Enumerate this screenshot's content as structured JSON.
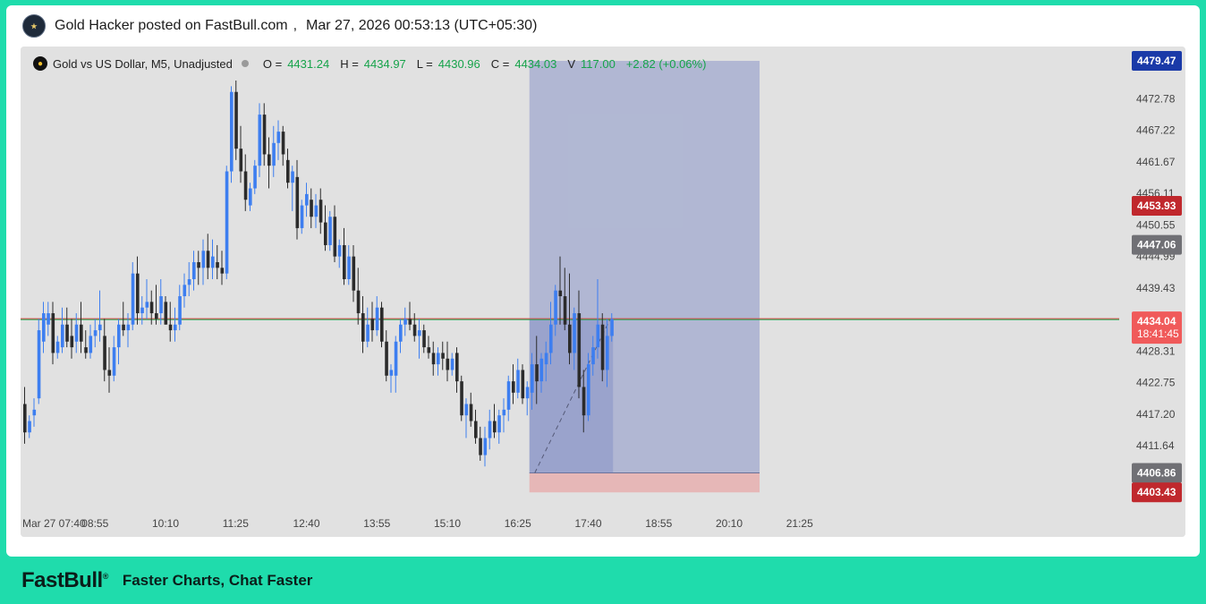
{
  "post": {
    "author": "Gold Hacker posted on FastBull.com",
    "separator": ",",
    "timestamp": "Mar 27, 2026 00:53:13 (UTC+05:30)"
  },
  "footer": {
    "brand": "FastBull",
    "tagline": "Faster Charts, Chat Faster"
  },
  "colors": {
    "up": "#3d7ef0",
    "down": "#2b2b2b",
    "bg": "#e1e1e1",
    "position_zone": "#6f7fc0",
    "stop_zone": "#e8a0a0",
    "pos_green": "#16a34a"
  },
  "chart_data": {
    "type": "candlestick",
    "symbol": "Gold vs US Dollar, M5, Unadjusted",
    "ohlc": {
      "open_label": "O =",
      "open": "4431.24",
      "high_label": "H =",
      "high": "4434.97",
      "low_label": "L =",
      "low": "4430.96",
      "close_label": "C =",
      "close": "4434.03",
      "volume_label": "V",
      "volume": "117.00",
      "change": "+2.82 (+0.06%)"
    },
    "y_range": [
      4400,
      4482
    ],
    "y_ticks": [
      "4472.78",
      "4467.22",
      "4461.67",
      "4456.11",
      "4450.55",
      "4444.99",
      "4439.43",
      "4428.31",
      "4422.75",
      "4417.20",
      "4411.64"
    ],
    "x_ticks": [
      "Mar 27 07:40",
      "08:55",
      "10:10",
      "11:25",
      "12:40",
      "13:55",
      "15:10",
      "16:25",
      "17:40",
      "18:55",
      "20:10",
      "21:25"
    ],
    "price_labels": [
      {
        "value": "4479.47",
        "y": 4479.47,
        "color": "#1a3aa8"
      },
      {
        "value": "4453.93",
        "y": 4453.93,
        "color": "#c0282d"
      },
      {
        "value": "4447.06",
        "y": 4447.06,
        "color": "#707075"
      },
      {
        "value": "4406.86",
        "y": 4406.86,
        "color": "#707075"
      },
      {
        "value": "4403.43",
        "y": 4403.43,
        "color": "#c0282d"
      }
    ],
    "current_price": {
      "value": "4434.04",
      "countdown": "18:41:45",
      "y": 4434.04,
      "color": "#f05a5a"
    },
    "position_tool": {
      "entry": 4406.86,
      "target": 4479.47,
      "stop": 4403.43,
      "start_time": "16:25",
      "end_time": "20:10"
    },
    "candles": [
      [
        4419,
        4422,
        4412,
        4414
      ],
      [
        4414,
        4417,
        4413,
        4416
      ],
      [
        4417,
        4420,
        4415,
        4418
      ],
      [
        4420,
        4434,
        4419,
        4432
      ],
      [
        4430,
        4437,
        4428,
        4435
      ],
      [
        4433,
        4437,
        4431,
        4435
      ],
      [
        4435,
        4437,
        4426,
        4428
      ],
      [
        4428,
        4431,
        4427,
        4430
      ],
      [
        4429,
        4436,
        4428,
        4433
      ],
      [
        4433,
        4436,
        4429,
        4430
      ],
      [
        4431,
        4434,
        4427,
        4429
      ],
      [
        4430,
        4435,
        4428,
        4433
      ],
      [
        4433,
        4437,
        4428,
        4430
      ],
      [
        4429,
        4432,
        4427,
        4428
      ],
      [
        4428,
        4433,
        4427,
        4431
      ],
      [
        4431,
        4434,
        4429,
        4432
      ],
      [
        4432,
        4439,
        4430,
        4433
      ],
      [
        4431,
        4434,
        4423,
        4425
      ],
      [
        4425,
        4429,
        4421,
        4424
      ],
      [
        4424,
        4431,
        4423,
        4429
      ],
      [
        4429,
        4434,
        4426,
        4433
      ],
      [
        4433,
        4437,
        4431,
        4432
      ],
      [
        4432,
        4435,
        4429,
        4433
      ],
      [
        4433,
        4444,
        4432,
        4442
      ],
      [
        4442,
        4445,
        4433,
        4435
      ],
      [
        4435,
        4438,
        4433,
        4436
      ],
      [
        4436,
        4441,
        4434,
        4437
      ],
      [
        4437,
        4439,
        4433,
        4435
      ],
      [
        4435,
        4440,
        4433,
        4434
      ],
      [
        4435,
        4441,
        4433,
        4438
      ],
      [
        4437,
        4438,
        4433,
        4433
      ],
      [
        4433,
        4437,
        4430,
        4432
      ],
      [
        4432,
        4436,
        4430,
        4433
      ],
      [
        4433,
        4440,
        4432,
        4438
      ],
      [
        4438,
        4442,
        4436,
        4440
      ],
      [
        4440,
        4444,
        4438,
        4441
      ],
      [
        4441,
        4446,
        4439,
        4444
      ],
      [
        4444,
        4446,
        4440,
        4443
      ],
      [
        4443,
        4448,
        4440,
        4446
      ],
      [
        4446,
        4449,
        4441,
        4443
      ],
      [
        4443,
        4448,
        4441,
        4445
      ],
      [
        4444,
        4447,
        4441,
        4443
      ],
      [
        4443,
        4446,
        4440,
        4442
      ],
      [
        4442,
        4461,
        4441,
        4460
      ],
      [
        4460,
        4475,
        4458,
        4474
      ],
      [
        4474,
        4476,
        4462,
        4464
      ],
      [
        4464,
        4468,
        4458,
        4460
      ],
      [
        4460,
        4463,
        4453,
        4455
      ],
      [
        4454,
        4458,
        4453,
        4457
      ],
      [
        4457,
        4462,
        4456,
        4461
      ],
      [
        4461,
        4472,
        4459,
        4470
      ],
      [
        4470,
        4472,
        4461,
        4463
      ],
      [
        4463,
        4466,
        4457,
        4461
      ],
      [
        4461,
        4468,
        4459,
        4465
      ],
      [
        4465,
        4469,
        4462,
        4467
      ],
      [
        4467,
        4468,
        4461,
        4463
      ],
      [
        4462,
        4464,
        4457,
        4458
      ],
      [
        4458,
        4461,
        4453,
        4460
      ],
      [
        4459,
        4462,
        4448,
        4450
      ],
      [
        4450,
        4455,
        4449,
        4454
      ],
      [
        4454,
        4458,
        4452,
        4456
      ],
      [
        4455,
        4457,
        4450,
        4452
      ],
      [
        4452,
        4456,
        4450,
        4454
      ],
      [
        4455,
        4457,
        4449,
        4451
      ],
      [
        4451,
        4454,
        4446,
        4447
      ],
      [
        4447,
        4453,
        4446,
        4452
      ],
      [
        4452,
        4454,
        4444,
        4445
      ],
      [
        4445,
        4448,
        4443,
        4447
      ],
      [
        4447,
        4450,
        4440,
        4441
      ],
      [
        4441,
        4447,
        4440,
        4445
      ],
      [
        4445,
        4447,
        4437,
        4439
      ],
      [
        4439,
        4443,
        4433,
        4435
      ],
      [
        4435,
        4438,
        4428,
        4430
      ],
      [
        4430,
        4436,
        4429,
        4433
      ],
      [
        4434,
        4437,
        4430,
        4432
      ],
      [
        4432,
        4438,
        4431,
        4436
      ],
      [
        4436,
        4437,
        4429,
        4430
      ],
      [
        4430,
        4432,
        4423,
        4424
      ],
      [
        4424,
        4426,
        4421,
        4425
      ],
      [
        4424,
        4431,
        4421,
        4430
      ],
      [
        4430,
        4434,
        4428,
        4433
      ],
      [
        4433,
        4436,
        4431,
        4434
      ],
      [
        4434,
        4437,
        4432,
        4433
      ],
      [
        4433,
        4435,
        4430,
        4431
      ],
      [
        4431,
        4434,
        4427,
        4432
      ],
      [
        4432,
        4433,
        4428,
        4429
      ],
      [
        4429,
        4431,
        4427,
        4428
      ],
      [
        4428,
        4430,
        4424,
        4426
      ],
      [
        4426,
        4429,
        4424,
        4428
      ],
      [
        4428,
        4430,
        4425,
        4427
      ],
      [
        4427,
        4430,
        4423,
        4425
      ],
      [
        4425,
        4428,
        4424,
        4427
      ],
      [
        4428,
        4429,
        4421,
        4423
      ],
      [
        4423,
        4424,
        4416,
        4417
      ],
      [
        4417,
        4420,
        4413,
        4419
      ],
      [
        4419,
        4421,
        4415,
        4416
      ],
      [
        4416,
        4418,
        4412,
        4413
      ],
      [
        4413,
        4415,
        4409,
        4410
      ],
      [
        4410,
        4415,
        4408,
        4413
      ],
      [
        4413,
        4418,
        4411,
        4416
      ],
      [
        4416,
        4419,
        4413,
        4414
      ],
      [
        4414,
        4418,
        4412,
        4417
      ],
      [
        4417,
        4420,
        4414,
        4418
      ],
      [
        4418,
        4424,
        4416,
        4423
      ],
      [
        4423,
        4426,
        4419,
        4421
      ],
      [
        4421,
        4427,
        4420,
        4425
      ],
      [
        4425,
        4426,
        4419,
        4420
      ],
      [
        4420,
        4423,
        4417,
        4422
      ],
      [
        4421,
        4428,
        4418,
        4426
      ],
      [
        4426,
        4431,
        4419,
        4423
      ],
      [
        4423,
        4428,
        4421,
        4427
      ],
      [
        4426,
        4430,
        4423,
        4428
      ],
      [
        4428,
        4437,
        4426,
        4433
      ],
      [
        4433,
        4440,
        4431,
        4439
      ],
      [
        4439,
        4445,
        4433,
        4438
      ],
      [
        4438,
        4443,
        4432,
        4433
      ],
      [
        4433,
        4442,
        4426,
        4428
      ],
      [
        4428,
        4436,
        4425,
        4435
      ],
      [
        4435,
        4439,
        4420,
        4422
      ],
      [
        4422,
        4425,
        4414,
        4417
      ],
      [
        4417,
        4428,
        4416,
        4426
      ],
      [
        4426,
        4431,
        4424,
        4429
      ],
      [
        4429,
        4441,
        4427,
        4433
      ],
      [
        4433,
        4435,
        4423,
        4425
      ],
      [
        4425,
        4434,
        4422,
        4431
      ],
      [
        4431,
        4435,
        4430,
        4434
      ]
    ]
  }
}
